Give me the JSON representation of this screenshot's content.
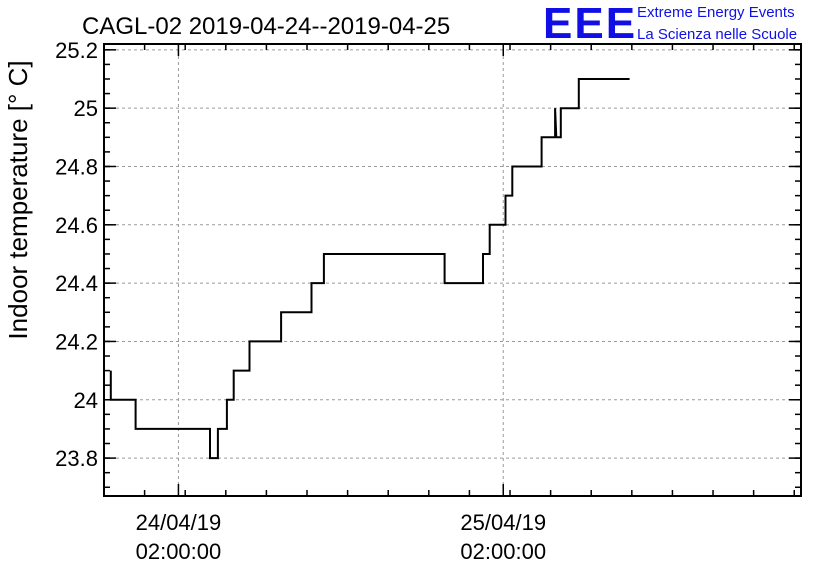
{
  "chart_data": {
    "type": "line",
    "title": "CAGL-02 2019-04-24--2019-04-25",
    "ylabel": "Indoor temperature [° C]",
    "xlabel": "",
    "ylim": [
      23.67,
      25.22
    ],
    "yticks": [
      23.8,
      24,
      24.2,
      24.4,
      24.6,
      24.8,
      25,
      25.2
    ],
    "ytick_labels": [
      "23.8",
      "24",
      "24.2",
      "24.4",
      "24.6",
      "24.8",
      "25",
      "25.2"
    ],
    "xlim": [
      "2019-04-23 20:30",
      "2019-04-26 00:00"
    ],
    "xticks": [
      {
        "value": "2019-04-24 02:00",
        "label_date": "24/04/19",
        "label_time": "02:00:00"
      },
      {
        "value": "2019-04-25 02:00",
        "label_date": "25/04/19",
        "label_time": "02:00:00"
      }
    ],
    "grid": true,
    "series": [
      {
        "name": "",
        "color": "#000000",
        "points": [
          [
            "2019-04-23 21:00",
            24.1
          ],
          [
            "2019-04-23 21:00",
            24.0
          ],
          [
            "2019-04-23 22:50",
            24.0
          ],
          [
            "2019-04-23 22:50",
            23.9
          ],
          [
            "2019-04-24 04:20",
            23.9
          ],
          [
            "2019-04-24 04:20",
            23.8
          ],
          [
            "2019-04-24 04:55",
            23.8
          ],
          [
            "2019-04-24 04:55",
            23.9
          ],
          [
            "2019-04-24 05:35",
            23.9
          ],
          [
            "2019-04-24 05:35",
            24.0
          ],
          [
            "2019-04-24 06:05",
            24.0
          ],
          [
            "2019-04-24 06:05",
            24.1
          ],
          [
            "2019-04-24 07:15",
            24.1
          ],
          [
            "2019-04-24 07:15",
            24.2
          ],
          [
            "2019-04-24 09:35",
            24.2
          ],
          [
            "2019-04-24 09:35",
            24.3
          ],
          [
            "2019-04-24 11:50",
            24.3
          ],
          [
            "2019-04-24 11:50",
            24.4
          ],
          [
            "2019-04-24 12:45",
            24.4
          ],
          [
            "2019-04-24 12:45",
            24.5
          ],
          [
            "2019-04-24 21:40",
            24.5
          ],
          [
            "2019-04-24 21:40",
            24.4
          ],
          [
            "2019-04-25 00:30",
            24.4
          ],
          [
            "2019-04-25 00:30",
            24.5
          ],
          [
            "2019-04-25 01:00",
            24.5
          ],
          [
            "2019-04-25 01:00",
            24.6
          ],
          [
            "2019-04-25 02:10",
            24.6
          ],
          [
            "2019-04-25 02:10",
            24.7
          ],
          [
            "2019-04-25 02:40",
            24.7
          ],
          [
            "2019-04-25 02:40",
            24.8
          ],
          [
            "2019-04-25 04:50",
            24.8
          ],
          [
            "2019-04-25 04:50",
            24.9
          ],
          [
            "2019-04-25 05:50",
            24.9
          ],
          [
            "2019-04-25 05:50",
            25.0
          ],
          [
            "2019-04-25 05:55",
            24.9
          ],
          [
            "2019-04-25 06:15",
            24.9
          ],
          [
            "2019-04-25 06:15",
            25.0
          ],
          [
            "2019-04-25 07:35",
            25.0
          ],
          [
            "2019-04-25 07:35",
            25.1
          ],
          [
            "2019-04-25 11:20",
            25.1
          ]
        ]
      }
    ]
  },
  "logo": {
    "mark": "EEE",
    "line1": "Extreme Energy Events",
    "line2": "La Scienza nelle Scuole",
    "color": "#1010e6"
  }
}
